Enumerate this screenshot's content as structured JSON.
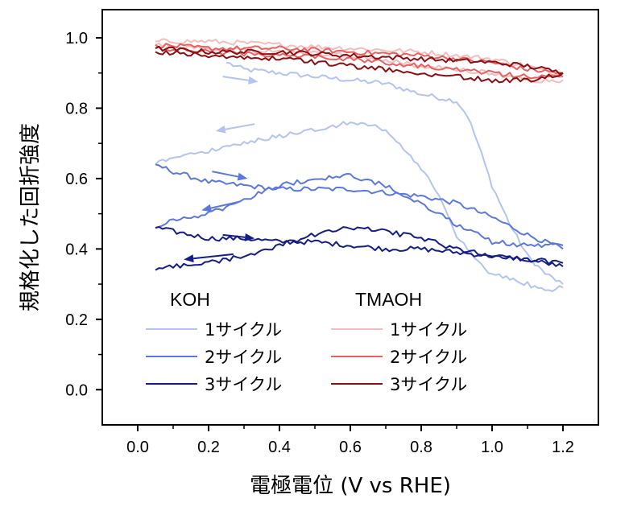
{
  "chart_data": {
    "type": "line",
    "title": "",
    "xlabel": "電極電位 (V vs RHE)",
    "ylabel": "規格化した回折強度",
    "xlim": [
      -0.1,
      1.3
    ],
    "ylim": [
      -0.1,
      1.08
    ],
    "xticks": [
      0.0,
      0.2,
      0.4,
      0.6,
      0.8,
      1.0,
      1.2
    ],
    "xtick_labels": [
      "0.0",
      "0.2",
      "0.4",
      "0.6",
      "0.8",
      "1.0",
      "1.2"
    ],
    "yticks": [
      0.0,
      0.2,
      0.4,
      0.6,
      0.8,
      1.0
    ],
    "ytick_labels": [
      "0.0",
      "0.2",
      "0.4",
      "0.6",
      "0.8",
      "1.0"
    ],
    "grid": false,
    "legend": {
      "placement": "lower-left",
      "groups": [
        {
          "title": "KOH",
          "entries": [
            "1サイクル",
            "2サイクル",
            "3サイクル"
          ]
        },
        {
          "title": "TMAOH",
          "entries": [
            "1サイクル",
            "2サイクル",
            "3サイクル"
          ]
        }
      ]
    },
    "series": [
      {
        "name": "1サイクル",
        "group": "KOH",
        "color": "#b4c4f2",
        "anodic": {
          "x": [
            0.25,
            0.3,
            0.4,
            0.5,
            0.6,
            0.7,
            0.8,
            0.9,
            0.93,
            0.96,
            1.0,
            1.05,
            1.1,
            1.15,
            1.2
          ],
          "y": [
            0.93,
            0.91,
            0.9,
            0.89,
            0.88,
            0.87,
            0.84,
            0.82,
            0.78,
            0.7,
            0.58,
            0.47,
            0.38,
            0.33,
            0.3
          ]
        },
        "cathodic": {
          "x": [
            1.2,
            1.15,
            1.1,
            1.0,
            0.95,
            0.9,
            0.85,
            0.8,
            0.7,
            0.6,
            0.5,
            0.4,
            0.3,
            0.2,
            0.1,
            0.05
          ],
          "y": [
            0.29,
            0.28,
            0.3,
            0.33,
            0.37,
            0.44,
            0.55,
            0.63,
            0.74,
            0.76,
            0.74,
            0.72,
            0.7,
            0.68,
            0.66,
            0.64
          ]
        }
      },
      {
        "name": "2サイクル",
        "group": "KOH",
        "color": "#5a78e0",
        "anodic": {
          "x": [
            0.05,
            0.1,
            0.2,
            0.3,
            0.4,
            0.5,
            0.6,
            0.7,
            0.8,
            0.9,
            1.0,
            1.1,
            1.2
          ],
          "y": [
            0.64,
            0.62,
            0.59,
            0.58,
            0.57,
            0.57,
            0.57,
            0.56,
            0.55,
            0.53,
            0.49,
            0.44,
            0.4
          ]
        },
        "cathodic": {
          "x": [
            1.2,
            1.1,
            1.0,
            0.9,
            0.8,
            0.7,
            0.6,
            0.5,
            0.4,
            0.3,
            0.2,
            0.1,
            0.05
          ],
          "y": [
            0.41,
            0.41,
            0.42,
            0.47,
            0.53,
            0.58,
            0.61,
            0.6,
            0.58,
            0.54,
            0.5,
            0.48,
            0.46
          ]
        }
      },
      {
        "name": "3サイクル",
        "group": "KOH",
        "color": "#141d86",
        "anodic": {
          "x": [
            0.05,
            0.1,
            0.2,
            0.3,
            0.4,
            0.5,
            0.6,
            0.7,
            0.8,
            0.9,
            1.0,
            1.1,
            1.2
          ],
          "y": [
            0.46,
            0.45,
            0.43,
            0.43,
            0.42,
            0.42,
            0.41,
            0.4,
            0.4,
            0.39,
            0.38,
            0.37,
            0.35
          ]
        },
        "cathodic": {
          "x": [
            1.2,
            1.1,
            1.0,
            0.9,
            0.8,
            0.7,
            0.6,
            0.5,
            0.4,
            0.3,
            0.2,
            0.1,
            0.05
          ],
          "y": [
            0.36,
            0.37,
            0.38,
            0.4,
            0.43,
            0.45,
            0.46,
            0.44,
            0.41,
            0.38,
            0.36,
            0.35,
            0.34
          ]
        }
      },
      {
        "name": "1サイクル",
        "group": "TMAOH",
        "color": "#f7bcbc",
        "anodic": {
          "x": [
            0.05,
            0.2,
            0.4,
            0.6,
            0.8,
            1.0,
            1.1,
            1.2
          ],
          "y": [
            0.99,
            0.99,
            0.98,
            0.97,
            0.96,
            0.94,
            0.92,
            0.89
          ]
        },
        "cathodic": {
          "x": [
            1.2,
            1.1,
            1.0,
            0.8,
            0.6,
            0.4,
            0.2,
            0.05
          ],
          "y": [
            0.88,
            0.88,
            0.9,
            0.92,
            0.95,
            0.96,
            0.97,
            0.98
          ]
        }
      },
      {
        "name": "2サイクル",
        "group": "TMAOH",
        "color": "#e96060",
        "anodic": {
          "x": [
            0.05,
            0.2,
            0.4,
            0.6,
            0.8,
            1.0,
            1.1,
            1.2
          ],
          "y": [
            0.98,
            0.97,
            0.97,
            0.96,
            0.95,
            0.93,
            0.91,
            0.9
          ]
        },
        "cathodic": {
          "x": [
            1.2,
            1.1,
            1.0,
            0.8,
            0.6,
            0.4,
            0.2,
            0.05
          ],
          "y": [
            0.89,
            0.89,
            0.9,
            0.92,
            0.94,
            0.95,
            0.96,
            0.97
          ]
        }
      },
      {
        "name": "3サイクル",
        "group": "TMAOH",
        "color": "#8b0f12",
        "anodic": {
          "x": [
            0.05,
            0.2,
            0.4,
            0.6,
            0.8,
            1.0,
            1.1,
            1.2
          ],
          "y": [
            0.97,
            0.96,
            0.96,
            0.95,
            0.94,
            0.93,
            0.92,
            0.9
          ]
        },
        "cathodic": {
          "x": [
            1.2,
            1.15,
            1.1,
            1.0,
            0.9,
            0.8,
            0.6,
            0.4,
            0.2,
            0.05
          ],
          "y": [
            0.9,
            0.89,
            0.88,
            0.88,
            0.89,
            0.9,
            0.92,
            0.94,
            0.95,
            0.96
          ]
        }
      }
    ],
    "arrows": [
      {
        "color": "#b4c4f2",
        "from": [
          0.24,
          0.89
        ],
        "to": [
          0.34,
          0.875
        ]
      },
      {
        "color": "#b4c4f2",
        "from": [
          0.33,
          0.755
        ],
        "to": [
          0.22,
          0.735
        ]
      },
      {
        "color": "#5a78e0",
        "from": [
          0.21,
          0.62
        ],
        "to": [
          0.31,
          0.6
        ]
      },
      {
        "color": "#5a78e0",
        "from": [
          0.29,
          0.535
        ],
        "to": [
          0.18,
          0.51
        ]
      },
      {
        "color": "#141d86",
        "from": [
          0.24,
          0.44
        ],
        "to": [
          0.33,
          0.43
        ]
      },
      {
        "color": "#141d86",
        "from": [
          0.27,
          0.385
        ],
        "to": [
          0.13,
          0.37
        ]
      }
    ]
  }
}
